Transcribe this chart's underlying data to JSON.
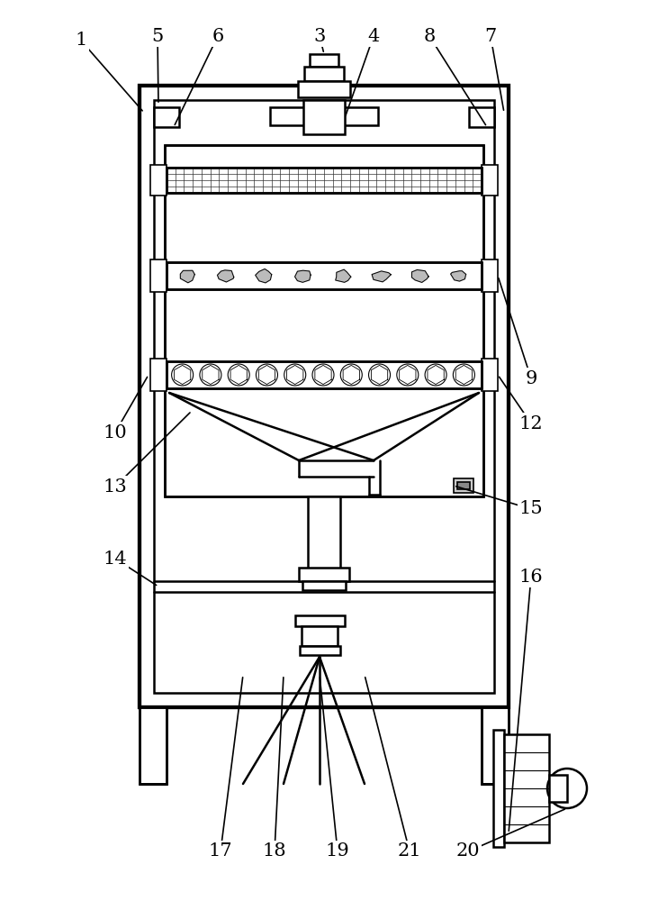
{
  "bg_color": "#ffffff",
  "line_color": "#000000",
  "fig_width": 7.21,
  "fig_height": 10.0,
  "label_fontsize": 15
}
